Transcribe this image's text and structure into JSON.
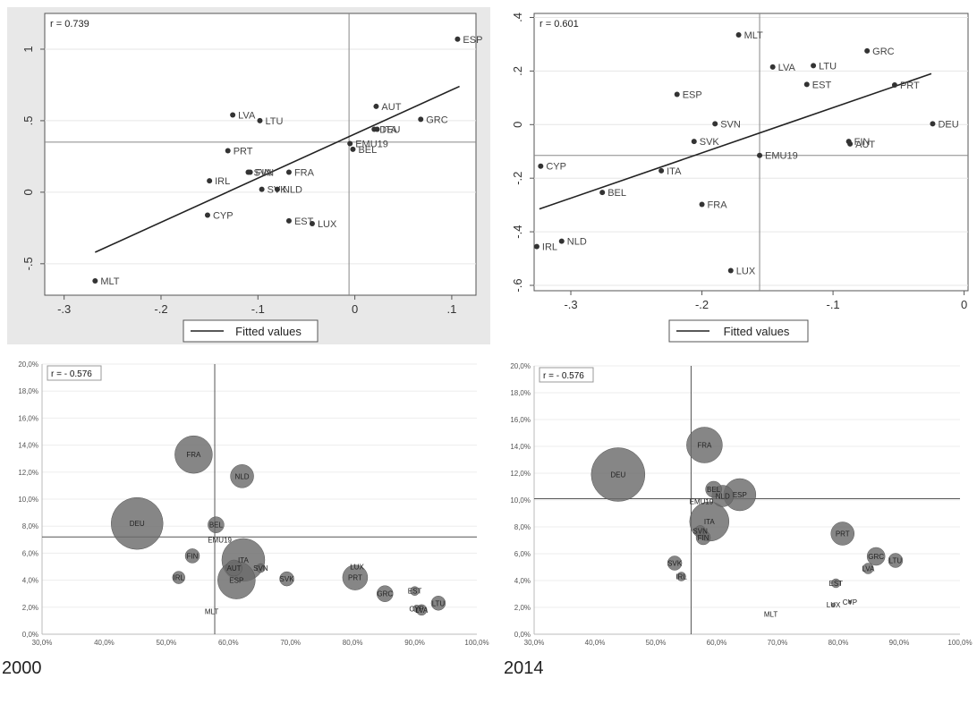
{
  "colors": {
    "panel_top_bg": "#e8e8e8",
    "plot_bg": "#ffffff",
    "axis": "#555555",
    "grid": "#e6e6e6",
    "point": "#333333",
    "bubble": "#6b6b6b",
    "fit_line": "#222222"
  },
  "captions": [
    "2000",
    "2014"
  ],
  "chart_data": [
    {
      "type": "scatter",
      "panel": "top-left",
      "annotation": "r = 0.739",
      "legend": "Fitted values",
      "xlim": [
        -0.32,
        0.125
      ],
      "ylim": [
        -0.72,
        1.25
      ],
      "xticks": [
        -0.3,
        -0.2,
        -0.1,
        0,
        0.1
      ],
      "xtick_labels": [
        "-.3",
        "-.2",
        "-.1",
        "0",
        ".1"
      ],
      "yticks": [
        -0.5,
        0,
        0.5,
        1
      ],
      "ytick_labels": [
        "-.5",
        "0",
        ".5",
        "1"
      ],
      "mean_x": -0.006,
      "mean_y": 0.35,
      "fit_line": [
        [
          -0.268,
          -0.42
        ],
        [
          0.108,
          0.74
        ]
      ],
      "points": [
        {
          "label": "ESP",
          "x": 0.106,
          "y": 1.07
        },
        {
          "label": "AUT",
          "x": 0.022,
          "y": 0.6
        },
        {
          "label": "GRC",
          "x": 0.068,
          "y": 0.51
        },
        {
          "label": "LVA",
          "x": -0.126,
          "y": 0.54
        },
        {
          "label": "LTU",
          "x": -0.098,
          "y": 0.5
        },
        {
          "label": "ITA",
          "x": 0.023,
          "y": 0.44
        },
        {
          "label": "DEU",
          "x": 0.02,
          "y": 0.44
        },
        {
          "label": "EMU19",
          "x": -0.005,
          "y": 0.34
        },
        {
          "label": "BEL",
          "x": -0.002,
          "y": 0.3
        },
        {
          "label": "PRT",
          "x": -0.131,
          "y": 0.29
        },
        {
          "label": "SVN",
          "x": -0.11,
          "y": 0.14
        },
        {
          "label": "FIN",
          "x": -0.108,
          "y": 0.14
        },
        {
          "label": "FRA",
          "x": -0.068,
          "y": 0.14
        },
        {
          "label": "IRL",
          "x": -0.15,
          "y": 0.08
        },
        {
          "label": "SVK",
          "x": -0.096,
          "y": 0.02
        },
        {
          "label": "NLD",
          "x": -0.08,
          "y": 0.02
        },
        {
          "label": "CYP",
          "x": -0.152,
          "y": -0.16
        },
        {
          "label": "EST",
          "x": -0.068,
          "y": -0.2
        },
        {
          "label": "LUX",
          "x": -0.044,
          "y": -0.22
        },
        {
          "label": "MLT",
          "x": -0.268,
          "y": -0.62
        }
      ]
    },
    {
      "type": "scatter",
      "panel": "top-right",
      "annotation": "r = 0.601",
      "legend": "Fitted values",
      "xlim": [
        -0.328,
        0.003
      ],
      "ylim": [
        -0.62,
        0.415
      ],
      "xticks": [
        -0.3,
        -0.2,
        -0.1,
        0
      ],
      "xtick_labels": [
        "-.3",
        "-.2",
        "-.1",
        "0"
      ],
      "yticks": [
        -0.6,
        -0.4,
        -0.2,
        0,
        0.2,
        0.4
      ],
      "ytick_labels": [
        "-.6",
        "-.4",
        "-.2",
        "0",
        ".2",
        ".4"
      ],
      "mean_x": -0.156,
      "mean_y": -0.115,
      "fit_line": [
        [
          -0.324,
          -0.315
        ],
        [
          -0.025,
          0.19
        ]
      ],
      "points": [
        {
          "label": "MLT",
          "x": -0.172,
          "y": 0.335
        },
        {
          "label": "GRC",
          "x": -0.074,
          "y": 0.275
        },
        {
          "label": "LVA",
          "x": -0.146,
          "y": 0.215
        },
        {
          "label": "LTU",
          "x": -0.115,
          "y": 0.22
        },
        {
          "label": "EST",
          "x": -0.12,
          "y": 0.15
        },
        {
          "label": "PRT",
          "x": -0.053,
          "y": 0.148
        },
        {
          "label": "ESP",
          "x": -0.219,
          "y": 0.113
        },
        {
          "label": "SVN",
          "x": -0.19,
          "y": 0.003
        },
        {
          "label": "DEU",
          "x": -0.024,
          "y": 0.003
        },
        {
          "label": "SVK",
          "x": -0.206,
          "y": -0.063
        },
        {
          "label": "FIN",
          "x": -0.088,
          "y": -0.063
        },
        {
          "label": "AUT",
          "x": -0.087,
          "y": -0.072
        },
        {
          "label": "EMU19",
          "x": -0.156,
          "y": -0.115
        },
        {
          "label": "CYP",
          "x": -0.323,
          "y": -0.155
        },
        {
          "label": "ITA",
          "x": -0.231,
          "y": -0.172
        },
        {
          "label": "BEL",
          "x": -0.276,
          "y": -0.253
        },
        {
          "label": "FRA",
          "x": -0.2,
          "y": -0.298
        },
        {
          "label": "IRL",
          "x": -0.326,
          "y": -0.455
        },
        {
          "label": "NLD",
          "x": -0.307,
          "y": -0.435
        },
        {
          "label": "LUX",
          "x": -0.178,
          "y": -0.545
        }
      ]
    },
    {
      "type": "scatter",
      "panel": "bottom-left",
      "annotation": "r = - 0.576",
      "xlim": [
        30,
        100
      ],
      "ylim": [
        0,
        20
      ],
      "xticks": [
        30,
        40,
        50,
        60,
        70,
        80,
        90,
        100
      ],
      "xtick_labels": [
        "30,0%",
        "40,0%",
        "50,0%",
        "60,0%",
        "70,0%",
        "80,0%",
        "90,0%",
        "100,0%"
      ],
      "yticks": [
        0,
        2,
        4,
        6,
        8,
        10,
        12,
        14,
        16,
        18,
        20
      ],
      "ytick_labels": [
        "0,0%",
        "2,0%",
        "4,0%",
        "6,0%",
        "8,0%",
        "10,0%",
        "12,0%",
        "14,0%",
        "16,0%",
        "18,0%",
        "20,0%"
      ],
      "mean_x": 57.8,
      "mean_y": 7.2,
      "bubbles": [
        {
          "label": "DEU",
          "x": 45.3,
          "y": 8.2,
          "size": 29
        },
        {
          "label": "FRA",
          "x": 54.4,
          "y": 13.3,
          "size": 21
        },
        {
          "label": "NLD",
          "x": 62.2,
          "y": 11.7,
          "size": 13
        },
        {
          "label": "BEL",
          "x": 58.0,
          "y": 8.1,
          "size": 9
        },
        {
          "label": "EMU19",
          "x": 58.6,
          "y": 7.0,
          "size": 0
        },
        {
          "label": "ITA",
          "x": 62.4,
          "y": 5.5,
          "size": 24
        },
        {
          "label": "ESP",
          "x": 61.3,
          "y": 4.0,
          "size": 21
        },
        {
          "label": "AUT",
          "x": 60.9,
          "y": 4.9,
          "size": 9
        },
        {
          "label": "SVN",
          "x": 65.2,
          "y": 4.9,
          "size": 5
        },
        {
          "label": "FIN",
          "x": 54.2,
          "y": 5.8,
          "size": 8
        },
        {
          "label": "IRL",
          "x": 52.0,
          "y": 4.2,
          "size": 7
        },
        {
          "label": "SVK",
          "x": 69.4,
          "y": 4.1,
          "size": 8
        },
        {
          "label": "MLT",
          "x": 57.3,
          "y": 1.7,
          "size": 0
        },
        {
          "label": "PRT",
          "x": 80.4,
          "y": 4.2,
          "size": 14
        },
        {
          "label": "LUX",
          "x": 80.7,
          "y": 5.0,
          "size": 0
        },
        {
          "label": "GRC",
          "x": 85.2,
          "y": 3.0,
          "size": 9
        },
        {
          "label": "EST",
          "x": 90.0,
          "y": 3.2,
          "size": 5
        },
        {
          "label": "CYP",
          "x": 90.3,
          "y": 1.9,
          "size": 4
        },
        {
          "label": "LVA",
          "x": 91.1,
          "y": 1.8,
          "size": 6
        },
        {
          "label": "LTU",
          "x": 93.8,
          "y": 2.3,
          "size": 8
        }
      ]
    },
    {
      "type": "scatter",
      "panel": "bottom-right",
      "annotation": "r = - 0.576",
      "xlim": [
        30,
        100
      ],
      "ylim": [
        0,
        20
      ],
      "xticks": [
        30,
        40,
        50,
        60,
        70,
        80,
        90,
        100
      ],
      "xtick_labels": [
        "30,0%",
        "40,0%",
        "50,0%",
        "60,0%",
        "70,0%",
        "80,0%",
        "90,0%",
        "100,0%"
      ],
      "yticks": [
        0,
        2,
        4,
        6,
        8,
        10,
        12,
        14,
        16,
        18,
        20
      ],
      "ytick_labels": [
        "0,0%",
        "2,0%",
        "4,0%",
        "6,0%",
        "8,0%",
        "10,0%",
        "12,0%",
        "14,0%",
        "16,0%",
        "18,0%",
        "20,0%"
      ],
      "mean_x": 55.8,
      "mean_y": 10.1,
      "bubbles": [
        {
          "label": "DEU",
          "x": 43.8,
          "y": 11.9,
          "size": 30
        },
        {
          "label": "FRA",
          "x": 58.0,
          "y": 14.1,
          "size": 20
        },
        {
          "label": "ESP",
          "x": 63.8,
          "y": 10.4,
          "size": 18
        },
        {
          "label": "BEL",
          "x": 59.5,
          "y": 10.8,
          "size": 9
        },
        {
          "label": "NLD",
          "x": 61.0,
          "y": 10.3,
          "size": 12
        },
        {
          "label": "EMU19",
          "x": 57.5,
          "y": 9.9,
          "size": 0
        },
        {
          "label": "ITA",
          "x": 58.8,
          "y": 8.4,
          "size": 22
        },
        {
          "label": "SVN",
          "x": 57.3,
          "y": 7.7,
          "size": 6
        },
        {
          "label": "FIN",
          "x": 57.8,
          "y": 7.2,
          "size": 8
        },
        {
          "label": "SVK",
          "x": 53.1,
          "y": 5.3,
          "size": 8
        },
        {
          "label": "IRL",
          "x": 54.2,
          "y": 4.3,
          "size": 5
        },
        {
          "label": "PRT",
          "x": 80.7,
          "y": 7.5,
          "size": 13
        },
        {
          "label": "GRC",
          "x": 86.2,
          "y": 5.8,
          "size": 10
        },
        {
          "label": "LTU",
          "x": 89.4,
          "y": 5.5,
          "size": 8
        },
        {
          "label": "LVA",
          "x": 84.9,
          "y": 4.9,
          "size": 6
        },
        {
          "label": "EST",
          "x": 79.6,
          "y": 3.8,
          "size": 5
        },
        {
          "label": "LUX",
          "x": 79.2,
          "y": 2.2,
          "size": 2
        },
        {
          "label": "CYP",
          "x": 81.9,
          "y": 2.4,
          "size": 2
        },
        {
          "label": "MLT",
          "x": 68.9,
          "y": 1.5,
          "size": 0
        }
      ]
    }
  ]
}
